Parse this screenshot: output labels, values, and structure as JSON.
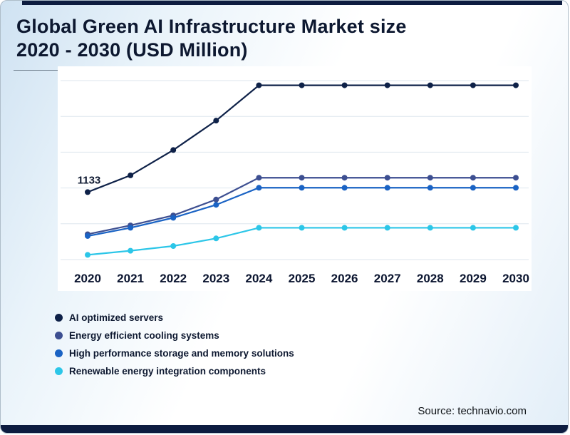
{
  "title": "Global Green AI Infrastructure Market size 2020 - 2030 (USD Million)",
  "source": {
    "text": "Source: technavio.com"
  },
  "chart_data": {
    "type": "line",
    "x": [
      2020,
      2021,
      2022,
      2023,
      2024,
      2025,
      2026,
      2027,
      2028,
      2029,
      2030
    ],
    "series": [
      {
        "name": "AI optimized servers",
        "color": "#0e2148",
        "values": [
          1133,
          1275,
          1490,
          1740,
          2040,
          2040,
          2040,
          2040,
          2040,
          2040,
          2040
        ]
      },
      {
        "name": "Energy efficient cooling systems",
        "color": "#3d4f91",
        "values": [
          775,
          850,
          935,
          1070,
          1255,
          1255,
          1255,
          1255,
          1255,
          1255,
          1255
        ]
      },
      {
        "name": "High performance storage and memory solutions",
        "color": "#1a63c4",
        "values": [
          760,
          830,
          915,
          1025,
          1170,
          1170,
          1170,
          1170,
          1170,
          1170,
          1170
        ]
      },
      {
        "name": "Renewable energy integration components",
        "color": "#2cc6e8",
        "values": [
          600,
          635,
          675,
          740,
          830,
          830,
          830,
          830,
          830,
          830,
          830
        ]
      }
    ],
    "ylim": [
      560,
      2080
    ],
    "grid": true,
    "legend_position": "bottom-left",
    "annotations": [
      {
        "text": "1133",
        "x": 2020,
        "series": "AI optimized servers"
      }
    ]
  }
}
